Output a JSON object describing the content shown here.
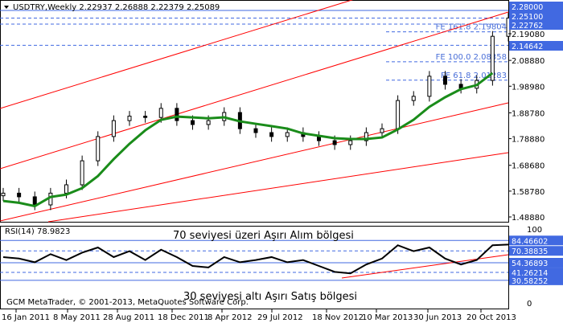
{
  "header": {
    "symbol_line": "USDTRY,Weekly  2.22937 2.26888 2.22379 2.25089"
  },
  "chart_data": [
    {
      "type": "candlestick-line",
      "title": "USDTRY,Weekly",
      "ohlc_last": {
        "open": 2.22937,
        "high": 2.26888,
        "low": 2.22379,
        "close": 2.25089
      },
      "x_tick_labels": [
        "16 Jan 2011",
        "8 May 2011",
        "28 Aug 2011",
        "18 Dec 2011",
        "8 Apr 2012",
        "29 Jul 2012",
        "18 Nov 2012",
        "10 Mar 2013",
        "30 Jun 2013",
        "20 Oct 2013"
      ],
      "y_tick_labels": [
        "2.19080",
        "2.08880",
        "1.98980",
        "1.88780",
        "1.78880",
        "1.68680",
        "1.58780",
        "1.48880"
      ],
      "ylim": [
        1.4888,
        2.29
      ],
      "closes": [
        1.58,
        1.566,
        1.535,
        1.58,
        1.612,
        1.704,
        1.797,
        1.858,
        1.875,
        1.87,
        1.905,
        1.858,
        1.843,
        1.858,
        1.889,
        1.827,
        1.812,
        1.797,
        1.812,
        1.797,
        1.781,
        1.766,
        1.781,
        1.812,
        1.827,
        1.935,
        1.951,
        2.028,
        1.997,
        1.982,
        2.012,
        2.181,
        2.251
      ],
      "price_labels": [
        {
          "text": "2.28000",
          "color": "#4169e1"
        },
        {
          "text": "2.25100",
          "color": "#4169e1"
        },
        {
          "text": "2.22762",
          "color": "#4169e1"
        },
        {
          "text": "2.14642",
          "color": "#4169e1"
        }
      ],
      "fibo_labels": [
        {
          "text": "FE 161.8  2.19804",
          "value": 2.19804
        },
        {
          "text": "FE 100.0  2.08358",
          "value": 2.08358
        },
        {
          "text": "FE 61.8  2.01283",
          "value": 2.01283
        }
      ],
      "colors": {
        "candles": "#000000",
        "moving_average": "#1a8c1a",
        "channel": "#ff0000",
        "levels": "#4169e1"
      }
    },
    {
      "type": "line",
      "title": "RSI(14) 78.9823",
      "ylim": [
        0,
        100
      ],
      "y_tick_labels": [
        "100",
        "0"
      ],
      "levels": [
        {
          "text": "84.46602",
          "value": 84.46602,
          "dashed": false
        },
        {
          "text": "70.38835",
          "value": 70.38835,
          "dashed": true
        },
        {
          "text": "54.36893",
          "value": 54.36893,
          "dashed": false
        },
        {
          "text": "41.26214",
          "value": 41.26214,
          "dashed": true
        },
        {
          "text": "30.58252",
          "value": 30.58252,
          "dashed": false
        }
      ],
      "values": [
        62,
        60,
        55,
        66,
        58,
        68,
        75,
        62,
        70,
        58,
        72,
        62,
        50,
        48,
        62,
        55,
        58,
        62,
        55,
        58,
        50,
        42,
        40,
        52,
        60,
        78,
        70,
        75,
        60,
        52,
        58,
        78,
        79
      ],
      "annotations": [
        "70 seviyesi üzeri Aşırı Alım bölgesi",
        "30 seviyesi altı Aşırı Satış bölgesi"
      ]
    }
  ],
  "footer": {
    "copyright": "GCM MetaTrader, © 2001-2013, MetaQuotes Software Corp."
  }
}
